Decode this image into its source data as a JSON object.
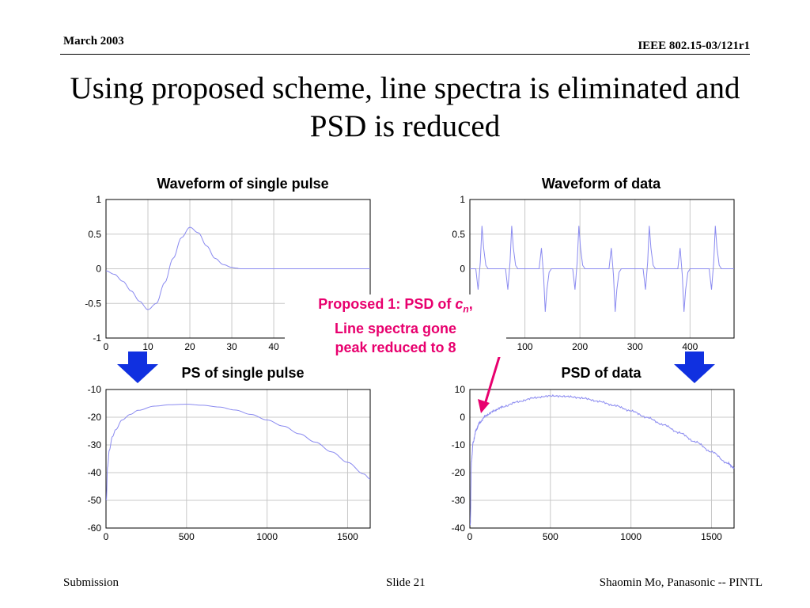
{
  "header": {
    "date": "March 2003",
    "doc_id": "IEEE 802.15-03/121r1"
  },
  "slide_title": "Using proposed scheme, line spectra is eliminated and PSD is reduced",
  "annotation": {
    "line1_prefix": "Proposed 1: PSD of ",
    "line1_var": "c",
    "line1_sub": "n",
    "line1_suffix": ",",
    "line2": "Line spectra gone",
    "line3": "peak reduced to  8"
  },
  "footer": {
    "left": "Submission",
    "center": "Slide 21",
    "right": "Shaomin Mo, Panasonic -- PINTL"
  },
  "colors": {
    "line": "#8a8af0",
    "grid": "#c8c8c8",
    "annotation": "#e8006e",
    "arrow": "#1030e0"
  },
  "chart_data": [
    {
      "type": "line",
      "title": "Waveform of single pulse",
      "xlim": [
        0,
        63
      ],
      "ylim": [
        -1,
        1
      ],
      "xticks": [
        0,
        10,
        20,
        30,
        40
      ],
      "xtick_labels": [
        "0",
        "10",
        "20",
        "30",
        "40"
      ],
      "yticks": [
        1,
        0.5,
        0,
        -0.5,
        -1
      ],
      "ytick_labels": [
        "1",
        "0.5",
        "0",
        "-0.5",
        "-1"
      ],
      "grid": true,
      "series": [
        {
          "x": [
            0,
            2,
            4,
            6,
            8,
            10,
            12,
            14,
            16,
            18,
            20,
            22,
            24,
            26,
            28,
            30,
            31,
            32,
            35,
            40,
            45,
            50,
            55,
            60,
            63
          ],
          "y": [
            -0.03,
            -0.08,
            -0.18,
            -0.32,
            -0.47,
            -0.59,
            -0.5,
            -0.2,
            0.15,
            0.45,
            0.6,
            0.52,
            0.33,
            0.15,
            0.06,
            0.02,
            0.01,
            0,
            0,
            0,
            0,
            0,
            0,
            0,
            0
          ]
        }
      ]
    },
    {
      "type": "line",
      "title": "Waveform of data",
      "xlim": [
        0,
        480
      ],
      "ylim": [
        -1,
        1
      ],
      "xticks": [
        100,
        200,
        300,
        400
      ],
      "xtick_labels": [
        "100",
        "200",
        "300",
        "400"
      ],
      "yticks": [
        1,
        0.5,
        0
      ],
      "ytick_labels": [
        "1",
        "0.5",
        "0"
      ],
      "grid": true,
      "pulse_centers": [
        22,
        76,
        137,
        198,
        264,
        326,
        389,
        446
      ],
      "pulse_polarity": [
        1,
        1,
        -1,
        1,
        -1,
        1,
        -1,
        1
      ],
      "pulse_amplitude": 0.62
    },
    {
      "type": "line",
      "title": "PS of single pulse",
      "xlim": [
        0,
        1640
      ],
      "ylim": [
        -60,
        -10
      ],
      "xticks": [
        0,
        500,
        1000,
        1500
      ],
      "xtick_labels": [
        "0",
        "500",
        "1000",
        "1500"
      ],
      "yticks": [
        -10,
        -20,
        -30,
        -40,
        -50,
        -60
      ],
      "ytick_labels": [
        "-10",
        "-20",
        "-30",
        "-40",
        "-50",
        "-60"
      ],
      "grid": true,
      "series": [
        {
          "x": [
            2,
            10,
            20,
            40,
            60,
            100,
            150,
            200,
            300,
            400,
            500,
            600,
            700,
            800,
            900,
            1000,
            1100,
            1200,
            1300,
            1400,
            1500,
            1600,
            1640
          ],
          "y": [
            -50,
            -38,
            -32,
            -27,
            -24.5,
            -21,
            -19,
            -17.5,
            -16,
            -15.5,
            -15.3,
            -15.7,
            -16.3,
            -17.4,
            -19,
            -21,
            -23.2,
            -26,
            -29,
            -32.5,
            -36.3,
            -40.5,
            -42.3
          ]
        }
      ]
    },
    {
      "type": "line",
      "title": "PSD of data",
      "xlim": [
        0,
        1640
      ],
      "ylim": [
        -40,
        10
      ],
      "xticks": [
        0,
        500,
        1000,
        1500
      ],
      "xtick_labels": [
        "0",
        "500",
        "1000",
        "1500"
      ],
      "yticks": [
        10,
        0,
        -10,
        -20,
        -30,
        -40
      ],
      "ytick_labels": [
        "10",
        "0",
        "-10",
        "-20",
        "-30",
        "-40"
      ],
      "grid": true,
      "series": [
        {
          "x": [
            2,
            10,
            20,
            40,
            60,
            100,
            150,
            200,
            300,
            400,
            500,
            600,
            700,
            800,
            900,
            1000,
            1100,
            1200,
            1300,
            1400,
            1500,
            1600,
            1640
          ],
          "y": [
            -39,
            -16,
            -9,
            -4.5,
            -2,
            0.6,
            2.3,
            3.7,
            5.6,
            7,
            7.7,
            7.5,
            6.9,
            5.7,
            4.2,
            2.3,
            -0.1,
            -2.7,
            -5.6,
            -8.9,
            -12.5,
            -16.6,
            -18.3
          ]
        }
      ]
    }
  ]
}
